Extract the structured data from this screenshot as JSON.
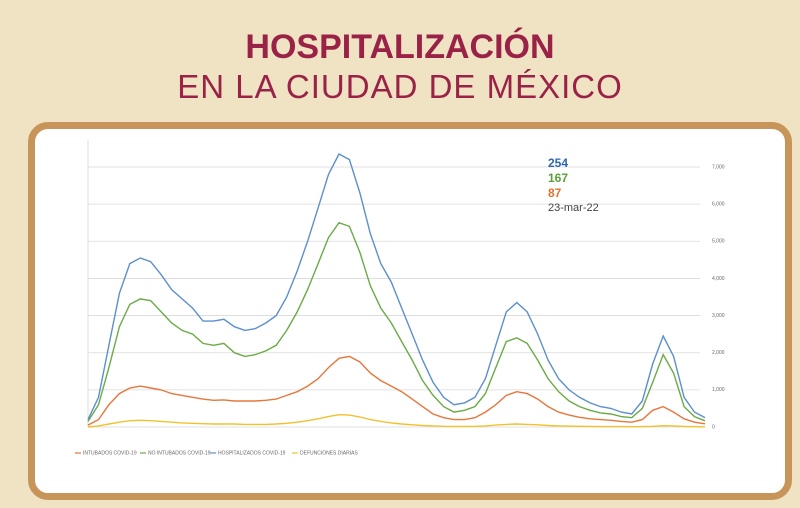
{
  "header": {
    "title": "HOSPITALIZACIÓN",
    "subtitle": "EN LA CIUDAD DE MÉXICO"
  },
  "chart_data": {
    "type": "line",
    "categories": [
      null,
      null,
      null,
      null,
      null,
      null,
      null,
      null,
      null,
      null,
      null,
      null,
      null,
      null,
      null,
      null,
      null,
      null,
      null,
      null,
      null,
      null,
      null,
      null,
      null,
      null,
      null,
      null,
      null,
      null,
      null,
      null,
      null,
      null,
      null,
      null,
      null,
      null,
      null,
      null,
      null,
      null,
      null,
      null,
      null,
      null,
      null,
      null,
      null,
      null,
      null,
      null,
      null,
      null,
      null,
      null,
      null,
      null,
      null,
      null
    ],
    "series": [
      {
        "name": "INTUBADOS COVID-19",
        "color": "#e8763a",
        "values": [
          50,
          200,
          600,
          900,
          1050,
          1100,
          1050,
          1000,
          900,
          850,
          800,
          750,
          720,
          730,
          700,
          700,
          700,
          720,
          750,
          850,
          950,
          1100,
          1300,
          1600,
          1850,
          1900,
          1750,
          1450,
          1250,
          1100,
          950,
          750,
          550,
          350,
          250,
          200,
          200,
          250,
          400,
          600,
          850,
          950,
          900,
          750,
          550,
          400,
          320,
          260,
          220,
          200,
          180,
          150,
          130,
          200,
          450,
          550,
          400,
          220,
          130,
          87
        ]
      },
      {
        "name": "NO INTUBADOS COVID-19",
        "color": "#6aab45",
        "values": [
          150,
          600,
          1600,
          2700,
          3300,
          3450,
          3400,
          3100,
          2800,
          2600,
          2500,
          2250,
          2200,
          2250,
          2000,
          1900,
          1950,
          2050,
          2200,
          2600,
          3100,
          3700,
          4400,
          5100,
          5500,
          5400,
          4700,
          3800,
          3200,
          2800,
          2300,
          1800,
          1250,
          850,
          550,
          400,
          450,
          550,
          900,
          1600,
          2300,
          2400,
          2250,
          1800,
          1300,
          950,
          700,
          550,
          450,
          380,
          350,
          280,
          250,
          500,
          1200,
          1950,
          1450,
          550,
          280,
          167
        ]
      },
      {
        "name": "HOSPITALIZADOS COVID-19",
        "color": "#5b8fcf",
        "values": [
          200,
          800,
          2200,
          3600,
          4400,
          4550,
          4450,
          4100,
          3700,
          3450,
          3200,
          2850,
          2850,
          2900,
          2700,
          2600,
          2650,
          2800,
          3000,
          3500,
          4200,
          5000,
          5900,
          6800,
          7350,
          7200,
          6300,
          5200,
          4400,
          3900,
          3200,
          2500,
          1800,
          1200,
          800,
          600,
          650,
          800,
          1300,
          2200,
          3100,
          3350,
          3100,
          2500,
          1800,
          1300,
          1000,
          800,
          650,
          550,
          500,
          400,
          350,
          700,
          1700,
          2450,
          1900,
          800,
          400,
          254
        ]
      },
      {
        "name": "DEFUNCIONES DIARIAS",
        "color": "#f2c12e",
        "values": [
          0,
          30,
          80,
          130,
          170,
          180,
          170,
          150,
          130,
          110,
          100,
          90,
          80,
          80,
          80,
          70,
          70,
          70,
          80,
          100,
          130,
          170,
          220,
          280,
          330,
          320,
          270,
          200,
          150,
          110,
          80,
          60,
          40,
          30,
          20,
          15,
          15,
          20,
          30,
          50,
          70,
          80,
          70,
          60,
          40,
          30,
          25,
          20,
          15,
          12,
          10,
          10,
          8,
          10,
          20,
          35,
          30,
          15,
          8,
          5
        ]
      }
    ],
    "ylim": [
      0,
      7000
    ],
    "yticks": [
      0,
      {
        "value": 1000,
        "label": "1,000"
      },
      {
        "value": 2000,
        "label": "2,000"
      },
      {
        "value": 3000,
        "label": "3,000"
      },
      {
        "value": 4000,
        "label": "4,000"
      },
      {
        "value": 5000,
        "label": "5,000"
      },
      {
        "value": 6000,
        "label": "6,000"
      },
      {
        "value": 7000,
        "label": "7,000"
      }
    ],
    "grid": true,
    "annotations": [
      {
        "text": "254",
        "color": "#2f64b5"
      },
      {
        "text": "167",
        "color": "#5aa03a"
      },
      {
        "text": "87",
        "color": "#e2702f"
      },
      {
        "text": "23-mar-22",
        "color": "#444444"
      }
    ]
  }
}
